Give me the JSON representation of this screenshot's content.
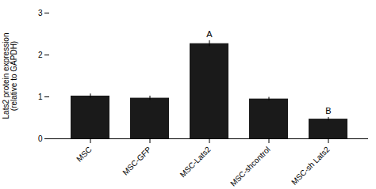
{
  "chart_data": {
    "type": "bar",
    "categories": [
      "MSC",
      "MSC-GFP",
      "MSC-Lats2",
      "MSC-shcontrol",
      "MSC-sh Lats2"
    ],
    "values": [
      1.02,
      0.97,
      2.27,
      0.95,
      0.47
    ],
    "errors": [
      0.05,
      0.05,
      0.07,
      0.04,
      0.04
    ],
    "color": "#1a1a1a",
    "ylabel": "Lats2 protein expression\n(relative to GAPDH)",
    "ylim": [
      0,
      3
    ],
    "yticks": [
      0,
      1,
      2,
      3
    ],
    "grid": false,
    "annotations": [
      {
        "text": "A",
        "category": "MSC-Lats2"
      },
      {
        "text": "B",
        "category": "MSC-sh Lats2"
      }
    ]
  }
}
